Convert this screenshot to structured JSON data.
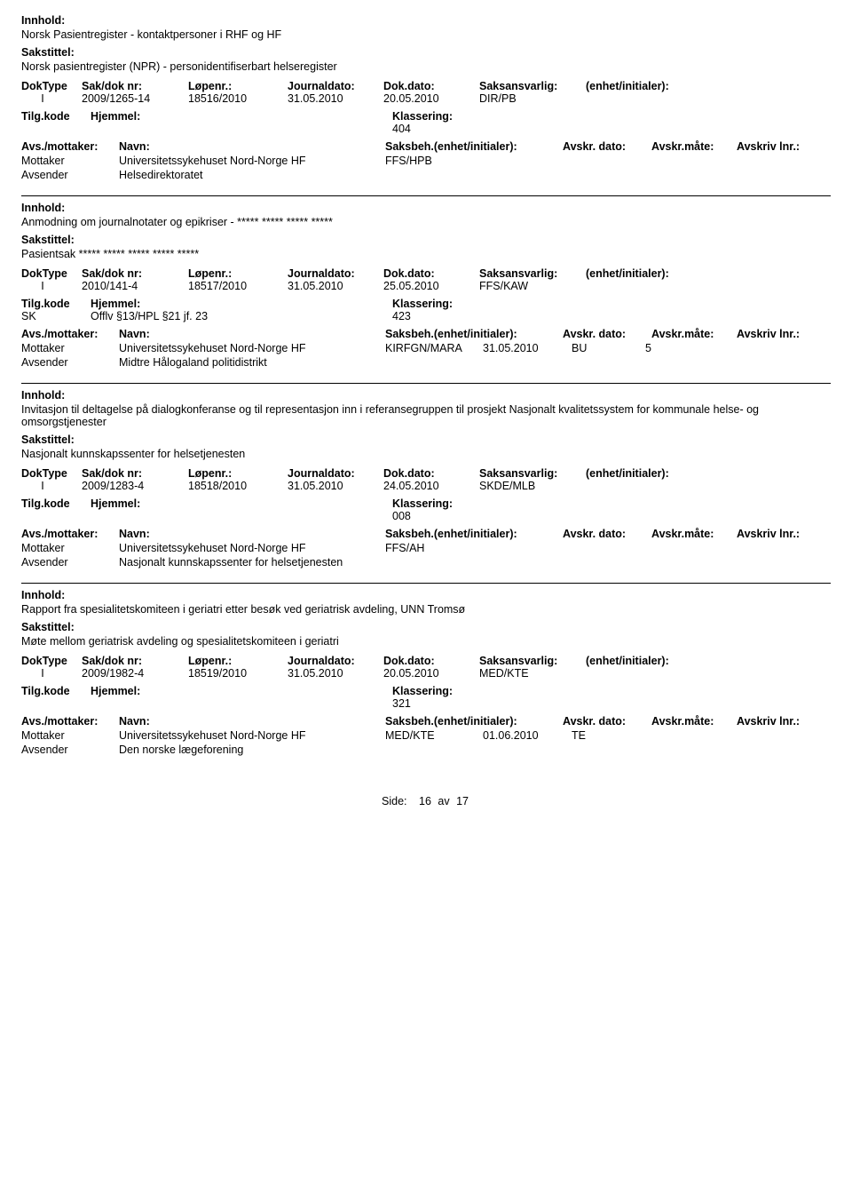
{
  "labels": {
    "innhold": "Innhold:",
    "sakstittel": "Sakstittel:",
    "doktype": "DokType",
    "sakdok": "Sak/dok nr:",
    "lopenr": "Løpenr.:",
    "jdato": "Journaldato:",
    "ddato": "Dok.dato:",
    "saksansv": "Saksansvarlig:",
    "enhet": "(enhet/initialer):",
    "tilgkode": "Tilg.kode",
    "hjemmel": "Hjemmel:",
    "klassering": "Klassering:",
    "avsmott": "Avs./mottaker:",
    "navn": "Navn:",
    "saksbeh": "Saksbeh.(enhet/initialer):",
    "avskrdato": "Avskr. dato:",
    "avskrmate": "Avskr.måte:",
    "avskrivlnr": "Avskriv lnr.:",
    "mottaker": "Mottaker",
    "avsender": "Avsender"
  },
  "entries": [
    {
      "innhold": "Norsk Pasientregister - kontaktpersoner i RHF og HF",
      "sakstittel": "Norsk pasientregister (NPR) - personidentifiserbart helseregister",
      "doktype": "I",
      "sakdok": "2009/1265-14",
      "lopenr": "18516/2010",
      "jdato": "31.05.2010",
      "ddato": "20.05.2010",
      "saksansv": "DIR/PB",
      "tilgkode": "",
      "hjemmel": "",
      "klassering": "404",
      "mottaker": "Universitetssykehuset Nord-Norge HF",
      "saksbeh": "FFS/HPB",
      "avskrdato": "",
      "avskrmate": "",
      "avskrivlnr": "",
      "avsender": "Helsedirektoratet"
    },
    {
      "innhold": "Anmodning om journalnotater og epikriser  - ***** ***** ***** *****",
      "sakstittel": "Pasientsak  ***** ***** ***** ***** *****",
      "doktype": "I",
      "sakdok": "2010/141-4",
      "lopenr": "18517/2010",
      "jdato": "31.05.2010",
      "ddato": "25.05.2010",
      "saksansv": "FFS/KAW",
      "tilgkode": "SK",
      "hjemmel": "Offlv §13/HPL §21 jf. 23",
      "klassering": "423",
      "mottaker": "Universitetssykehuset Nord-Norge HF",
      "saksbeh": "KIRFGN/MARA",
      "avskrdato": "31.05.2010",
      "avskrmate": "BU",
      "avskrivlnr": "5",
      "avsender": "Midtre Hålogaland politidistrikt"
    },
    {
      "innhold": "Invitasjon til deltagelse på dialogkonferanse og til representasjon inn i referansegruppen til prosjekt Nasjonalt kvalitetssystem for kommunale helse- og omsorgstjenester",
      "sakstittel": "Nasjonalt kunnskapssenter for helsetjenesten",
      "doktype": "I",
      "sakdok": "2009/1283-4",
      "lopenr": "18518/2010",
      "jdato": "31.05.2010",
      "ddato": "24.05.2010",
      "saksansv": "SKDE/MLB",
      "tilgkode": "",
      "hjemmel": "",
      "klassering": "008",
      "mottaker": "Universitetssykehuset Nord-Norge HF",
      "saksbeh": "FFS/AH",
      "avskrdato": "",
      "avskrmate": "",
      "avskrivlnr": "",
      "avsender": "Nasjonalt kunnskapssenter for helsetjenesten"
    },
    {
      "innhold": "Rapport fra spesialitetskomiteen i geriatri etter besøk ved geriatrisk avdeling, UNN Tromsø",
      "sakstittel": "Møte mellom geriatrisk avdeling og spesialitetskomiteen i geriatri",
      "doktype": "I",
      "sakdok": "2009/1982-4",
      "lopenr": "18519/2010",
      "jdato": "31.05.2010",
      "ddato": "20.05.2010",
      "saksansv": "MED/KTE",
      "tilgkode": "",
      "hjemmel": "",
      "klassering": "321",
      "mottaker": "Universitetssykehuset Nord-Norge HF",
      "saksbeh": "MED/KTE",
      "avskrdato": "01.06.2010",
      "avskrmate": "TE",
      "avskrivlnr": "",
      "avsender": "Den norske lægeforening"
    }
  ],
  "footer": {
    "side": "Side:",
    "page": "16",
    "av": "av",
    "total": "17"
  }
}
